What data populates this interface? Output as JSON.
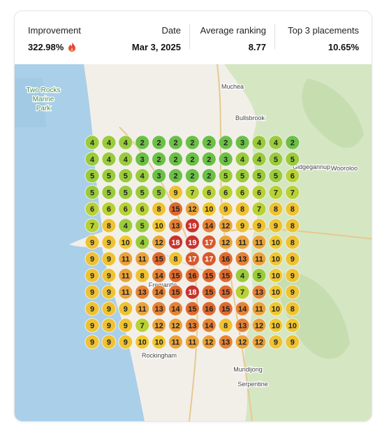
{
  "stats": [
    {
      "label": "Improvement",
      "value": "322.98%"
    },
    {
      "label": "Date",
      "value": "Mar 3, 2025"
    },
    {
      "label": "Average ranking",
      "value": "8.77"
    },
    {
      "label": "Top 3 placements",
      "value": "10.65%"
    }
  ],
  "map": {
    "labels": [
      "Two Rocks",
      "Marine",
      "Park",
      "Muchea",
      "Bullsbrook",
      "Gidgegannup",
      "Wooroloo",
      "Fremantle",
      "Rockingham",
      "Mundijong",
      "Serpentine"
    ],
    "grid": [
      [
        4,
        4,
        4,
        2,
        2,
        2,
        2,
        2,
        2,
        3,
        4,
        4,
        2
      ],
      [
        4,
        4,
        4,
        3,
        2,
        2,
        2,
        2,
        3,
        4,
        4,
        5,
        5
      ],
      [
        5,
        5,
        5,
        4,
        3,
        2,
        2,
        2,
        5,
        5,
        5,
        5,
        6
      ],
      [
        5,
        5,
        5,
        5,
        5,
        9,
        7,
        6,
        6,
        6,
        6,
        7,
        7
      ],
      [
        6,
        6,
        6,
        6,
        8,
        15,
        12,
        10,
        9,
        8,
        7,
        8,
        8
      ],
      [
        7,
        8,
        4,
        5,
        10,
        13,
        19,
        14,
        12,
        9,
        9,
        9,
        8
      ],
      [
        9,
        9,
        10,
        4,
        12,
        18,
        19,
        17,
        12,
        11,
        11,
        10,
        8
      ],
      [
        9,
        9,
        11,
        11,
        15,
        8,
        17,
        17,
        16,
        13,
        11,
        10,
        9
      ],
      [
        9,
        9,
        11,
        8,
        14,
        15,
        16,
        15,
        15,
        4,
        5,
        10,
        9
      ],
      [
        9,
        9,
        11,
        13,
        14,
        15,
        18,
        15,
        15,
        7,
        13,
        10,
        9
      ],
      [
        9,
        9,
        9,
        11,
        13,
        14,
        15,
        16,
        15,
        14,
        11,
        10,
        8
      ],
      [
        9,
        9,
        9,
        7,
        12,
        12,
        13,
        14,
        8,
        13,
        12,
        10,
        10
      ],
      [
        9,
        9,
        9,
        10,
        10,
        11,
        11,
        12,
        13,
        12,
        12,
        9,
        9
      ]
    ]
  }
}
